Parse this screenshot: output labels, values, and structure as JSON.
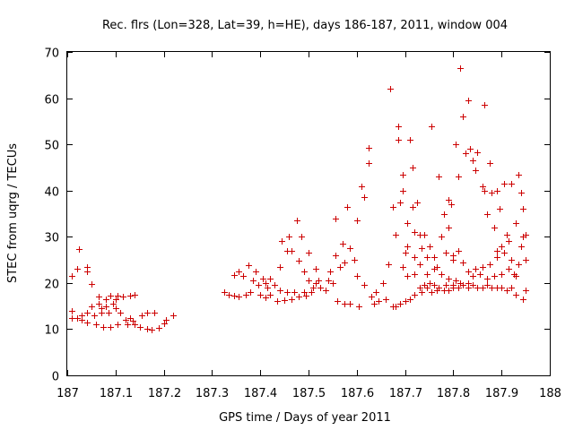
{
  "chart_data": {
    "type": "scatter",
    "title": "Rec. flrs (Lon=328, Lat=39, h=HE), days 186-187, 2011, window 004",
    "xlabel": "GPS time / Days of year 2011",
    "ylabel": "STEC from uqrg / TECUs",
    "xlim": [
      187,
      188
    ],
    "ylim": [
      0,
      70
    ],
    "xticks": [
      "187",
      "187.1",
      "187.2",
      "187.3",
      "187.4",
      "187.5",
      "187.6",
      "187.7",
      "187.8",
      "187.9",
      "188"
    ],
    "xtick_values": [
      187,
      187.1,
      187.2,
      187.3,
      187.4,
      187.5,
      187.6,
      187.7,
      187.8,
      187.9,
      188
    ],
    "yticks": [
      "0",
      "10",
      "20",
      "30",
      "40",
      "50",
      "60",
      "70"
    ],
    "ytick_values": [
      0,
      10,
      20,
      30,
      40,
      50,
      60,
      70
    ],
    "grid": false,
    "legend": "none",
    "marker": "plus",
    "color": "#cc0000",
    "points": [
      [
        187.01,
        21.5
      ],
      [
        187.01,
        14
      ],
      [
        187.01,
        12.5
      ],
      [
        187.02,
        12.5
      ],
      [
        187.02,
        23
      ],
      [
        187.025,
        27.4
      ],
      [
        187.03,
        13
      ],
      [
        187.03,
        12
      ],
      [
        187.04,
        23.5
      ],
      [
        187.04,
        22.5
      ],
      [
        187.04,
        13.5
      ],
      [
        187.04,
        11.5
      ],
      [
        187.05,
        19.8
      ],
      [
        187.05,
        15
      ],
      [
        187.055,
        13
      ],
      [
        187.06,
        11
      ],
      [
        187.065,
        17
      ],
      [
        187.065,
        15.5
      ],
      [
        187.07,
        14.5
      ],
      [
        187.07,
        13.5
      ],
      [
        187.075,
        10.5
      ],
      [
        187.08,
        16.5
      ],
      [
        187.08,
        15
      ],
      [
        187.085,
        13.5
      ],
      [
        187.09,
        17.2
      ],
      [
        187.09,
        10.5
      ],
      [
        187.095,
        15.5
      ],
      [
        187.1,
        14.5
      ],
      [
        187.1,
        16.5
      ],
      [
        187.105,
        17.2
      ],
      [
        187.105,
        11
      ],
      [
        187.11,
        13.5
      ],
      [
        187.115,
        17
      ],
      [
        187.12,
        12
      ],
      [
        187.125,
        11
      ],
      [
        187.13,
        17.2
      ],
      [
        187.13,
        12.5
      ],
      [
        187.135,
        11.8
      ],
      [
        187.14,
        17.5
      ],
      [
        187.14,
        11
      ],
      [
        187.15,
        10.5
      ],
      [
        187.155,
        13
      ],
      [
        187.165,
        13.5
      ],
      [
        187.165,
        10
      ],
      [
        187.175,
        9.8
      ],
      [
        187.18,
        13.5
      ],
      [
        187.19,
        10.2
      ],
      [
        187.2,
        11.2
      ],
      [
        187.205,
        12
      ],
      [
        187.22,
        13
      ],
      [
        187.325,
        18
      ],
      [
        187.335,
        17.5
      ],
      [
        187.345,
        17.2
      ],
      [
        187.345,
        21.8
      ],
      [
        187.355,
        17
      ],
      [
        187.355,
        22.5
      ],
      [
        187.365,
        21.5
      ],
      [
        187.37,
        17.5
      ],
      [
        187.375,
        23.8
      ],
      [
        187.38,
        18
      ],
      [
        187.385,
        20.5
      ],
      [
        187.39,
        22.5
      ],
      [
        187.395,
        19.5
      ],
      [
        187.4,
        17.5
      ],
      [
        187.405,
        21
      ],
      [
        187.41,
        20
      ],
      [
        187.41,
        16.8
      ],
      [
        187.415,
        19
      ],
      [
        187.42,
        21
      ],
      [
        187.42,
        17.5
      ],
      [
        187.43,
        19.5
      ],
      [
        187.435,
        16
      ],
      [
        187.44,
        18.5
      ],
      [
        187.44,
        23.5
      ],
      [
        187.445,
        29
      ],
      [
        187.45,
        16.2
      ],
      [
        187.455,
        27
      ],
      [
        187.455,
        18
      ],
      [
        187.46,
        30
      ],
      [
        187.465,
        27
      ],
      [
        187.465,
        16.5
      ],
      [
        187.47,
        18
      ],
      [
        187.475,
        33.5
      ],
      [
        187.48,
        17
      ],
      [
        187.48,
        24.8
      ],
      [
        187.485,
        30
      ],
      [
        187.49,
        18
      ],
      [
        187.49,
        22.5
      ],
      [
        187.495,
        17.2
      ],
      [
        187.5,
        26.5
      ],
      [
        187.5,
        20.5
      ],
      [
        187.505,
        18
      ],
      [
        187.51,
        19
      ],
      [
        187.515,
        23
      ],
      [
        187.515,
        20
      ],
      [
        187.52,
        20.5
      ],
      [
        187.525,
        19
      ],
      [
        187.535,
        18.5
      ],
      [
        187.54,
        20.5
      ],
      [
        187.545,
        22.5
      ],
      [
        187.55,
        20
      ],
      [
        187.555,
        34
      ],
      [
        187.555,
        26
      ],
      [
        187.56,
        16
      ],
      [
        187.565,
        23.5
      ],
      [
        187.57,
        28.5
      ],
      [
        187.575,
        24.5
      ],
      [
        187.575,
        15.5
      ],
      [
        187.58,
        36.5
      ],
      [
        187.585,
        27.5
      ],
      [
        187.585,
        15.5
      ],
      [
        187.595,
        25
      ],
      [
        187.6,
        33.5
      ],
      [
        187.6,
        21.5
      ],
      [
        187.605,
        15
      ],
      [
        187.61,
        41
      ],
      [
        187.615,
        38.5
      ],
      [
        187.615,
        19.5
      ],
      [
        187.625,
        46
      ],
      [
        187.625,
        49.2
      ],
      [
        187.63,
        17
      ],
      [
        187.635,
        15.5
      ],
      [
        187.64,
        18
      ],
      [
        187.645,
        16
      ],
      [
        187.655,
        20
      ],
      [
        187.66,
        16.5
      ],
      [
        187.665,
        24
      ],
      [
        187.67,
        62
      ],
      [
        187.675,
        15
      ],
      [
        187.675,
        36.5
      ],
      [
        187.68,
        30.5
      ],
      [
        187.685,
        51
      ],
      [
        187.685,
        54
      ],
      [
        187.69,
        37.5
      ],
      [
        187.695,
        43.5
      ],
      [
        187.695,
        40
      ],
      [
        187.7,
        26.5
      ],
      [
        187.705,
        33
      ],
      [
        187.705,
        28
      ],
      [
        187.71,
        51
      ],
      [
        187.715,
        45
      ],
      [
        187.715,
        36.5
      ],
      [
        187.72,
        31
      ],
      [
        187.72,
        25.5
      ],
      [
        187.725,
        37.5
      ],
      [
        187.73,
        30.5
      ],
      [
        187.735,
        18
      ],
      [
        187.735,
        27.5
      ],
      [
        187.74,
        30.5
      ],
      [
        187.745,
        22
      ],
      [
        187.75,
        28
      ],
      [
        187.755,
        54
      ],
      [
        187.76,
        25.5
      ],
      [
        187.765,
        23.5
      ],
      [
        187.77,
        43
      ],
      [
        187.775,
        30
      ],
      [
        187.78,
        35
      ],
      [
        187.785,
        26.5
      ],
      [
        187.79,
        32
      ],
      [
        187.79,
        38
      ],
      [
        187.795,
        37
      ],
      [
        187.8,
        25
      ],
      [
        187.805,
        50
      ],
      [
        187.81,
        43
      ],
      [
        187.815,
        66.5
      ],
      [
        187.82,
        56
      ],
      [
        187.825,
        48
      ],
      [
        187.83,
        59.5
      ],
      [
        187.835,
        49
      ],
      [
        187.84,
        46.5
      ],
      [
        187.845,
        44.5
      ],
      [
        187.85,
        48.2
      ],
      [
        187.86,
        41
      ],
      [
        187.865,
        58.5
      ],
      [
        187.865,
        40
      ],
      [
        187.87,
        35
      ],
      [
        187.875,
        46
      ],
      [
        187.88,
        39.5
      ],
      [
        187.885,
        32
      ],
      [
        187.89,
        40
      ],
      [
        187.89,
        27
      ],
      [
        187.895,
        36
      ],
      [
        187.9,
        28
      ],
      [
        187.905,
        41.5
      ],
      [
        187.91,
        30.5
      ],
      [
        187.915,
        29
      ],
      [
        187.92,
        41.5
      ],
      [
        187.925,
        22
      ],
      [
        187.93,
        33
      ],
      [
        187.935,
        43.5
      ],
      [
        187.94,
        28
      ],
      [
        187.94,
        39.5
      ],
      [
        187.945,
        36
      ],
      [
        187.945,
        30
      ],
      [
        187.95,
        25
      ],
      [
        187.95,
        18.5
      ],
      [
        187.945,
        16.5
      ],
      [
        187.93,
        17.5
      ],
      [
        187.92,
        19
      ],
      [
        187.91,
        18.5
      ],
      [
        187.9,
        19
      ],
      [
        187.89,
        19
      ],
      [
        187.88,
        19
      ],
      [
        187.87,
        19.5
      ],
      [
        187.86,
        19
      ],
      [
        187.85,
        19
      ],
      [
        187.84,
        19.5
      ],
      [
        187.83,
        20
      ],
      [
        187.82,
        19.5
      ],
      [
        187.81,
        19
      ],
      [
        187.8,
        19
      ],
      [
        187.79,
        18.5
      ],
      [
        187.78,
        18.5
      ],
      [
        187.77,
        19
      ],
      [
        187.76,
        19.5
      ],
      [
        187.75,
        20
      ],
      [
        187.74,
        19.5
      ],
      [
        187.73,
        19
      ],
      [
        187.72,
        17.5
      ],
      [
        187.71,
        16.5
      ],
      [
        187.7,
        16
      ],
      [
        187.69,
        15.5
      ],
      [
        187.68,
        15
      ],
      [
        187.695,
        23.5
      ],
      [
        187.705,
        21.5
      ],
      [
        187.72,
        22
      ],
      [
        187.73,
        24
      ],
      [
        187.745,
        25.5
      ],
      [
        187.76,
        23
      ],
      [
        187.775,
        22
      ],
      [
        187.79,
        21
      ],
      [
        187.805,
        20.5
      ],
      [
        187.815,
        20
      ],
      [
        187.83,
        22.5
      ],
      [
        187.845,
        23
      ],
      [
        187.86,
        23.5
      ],
      [
        187.875,
        24
      ],
      [
        187.89,
        25.5
      ],
      [
        187.905,
        26.5
      ],
      [
        187.92,
        25
      ],
      [
        187.935,
        24
      ],
      [
        187.95,
        30.5
      ],
      [
        187.8,
        26
      ],
      [
        187.81,
        27
      ],
      [
        187.82,
        24.5
      ],
      [
        187.84,
        21.5
      ],
      [
        187.855,
        22
      ],
      [
        187.87,
        21
      ],
      [
        187.885,
        21.5
      ],
      [
        187.9,
        22
      ],
      [
        187.915,
        23
      ],
      [
        187.93,
        21.5
      ],
      [
        187.745,
        19
      ],
      [
        187.755,
        18
      ],
      [
        187.765,
        18.5
      ],
      [
        187.785,
        19.5
      ],
      [
        187.8,
        19.5
      ],
      [
        187.83,
        19
      ]
    ]
  }
}
